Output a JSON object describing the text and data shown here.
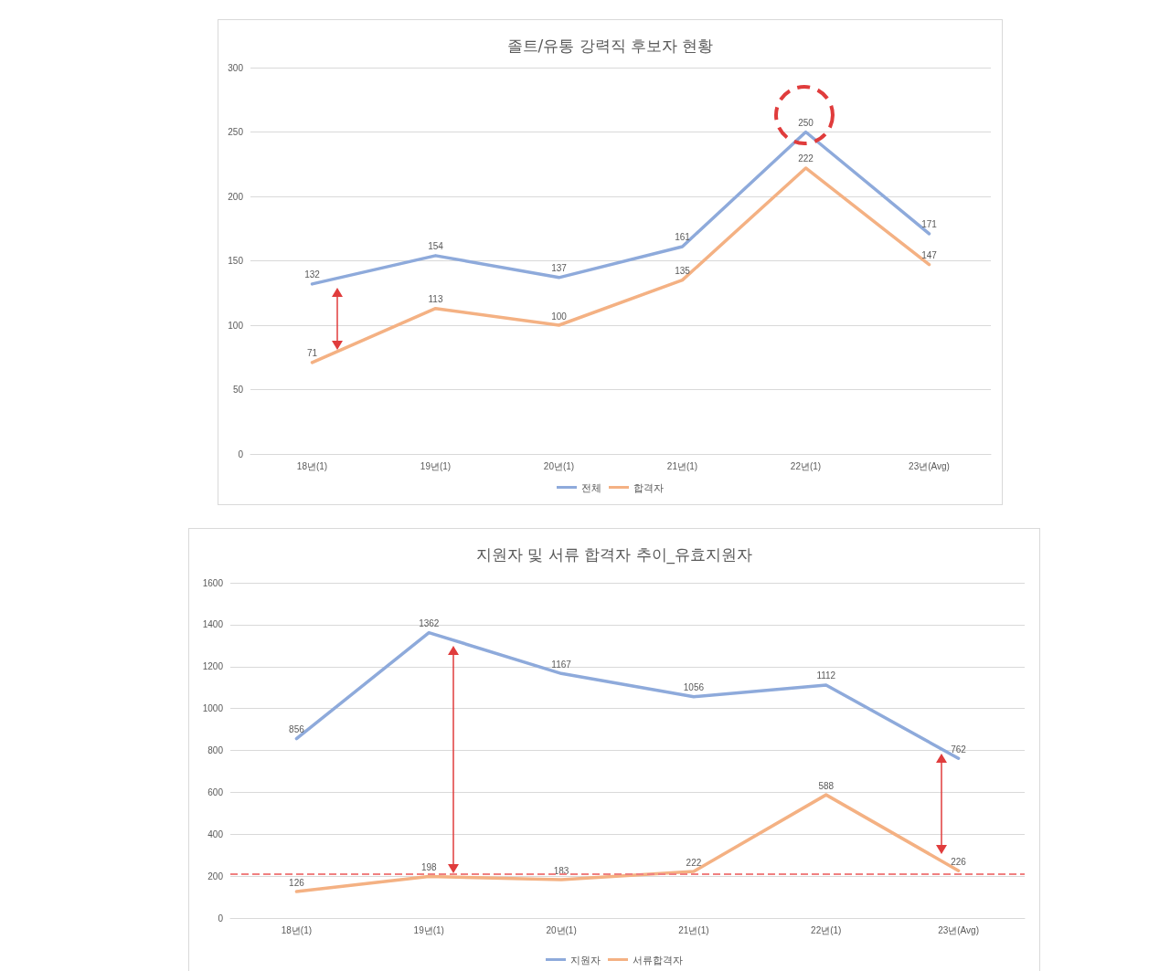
{
  "chart_data": [
    {
      "type": "line",
      "title": "졸트/유통 강력직 후보자 현황",
      "categories": [
        "18년(1)",
        "19년(1)",
        "20년(1)",
        "21년(1)",
        "22년(1)",
        "23년(Avg)"
      ],
      "series": [
        {
          "name": "전체",
          "color": "#8eaadb",
          "values": [
            132,
            154,
            137,
            161,
            250,
            171
          ]
        },
        {
          "name": "합격자",
          "color": "#f4b183",
          "values": [
            71,
            113,
            100,
            135,
            222,
            147
          ]
        }
      ],
      "ylim": [
        0,
        300
      ],
      "yticks": [
        0,
        50,
        100,
        150,
        200,
        250,
        300
      ],
      "grid": "y",
      "legend": "bottom",
      "data_labels": true,
      "marker": "none",
      "line_style": "solid"
    },
    {
      "type": "line",
      "title": "지원자 및 서류 합격자 추이_유효지원자",
      "categories": [
        "18년(1)",
        "19년(1)",
        "20년(1)",
        "21년(1)",
        "22년(1)",
        "23년(Avg)"
      ],
      "series": [
        {
          "name": "지원자",
          "color": "#8eaadb",
          "values": [
            856,
            1362,
            1167,
            1056,
            1112,
            762
          ]
        },
        {
          "name": "서류합격자",
          "color": "#f4b183",
          "values": [
            126,
            198,
            183,
            222,
            588,
            226
          ]
        }
      ],
      "ylim": [
        0,
        1600
      ],
      "yticks": [
        0,
        200,
        400,
        600,
        800,
        1000,
        1200,
        1400,
        1600
      ],
      "grid": "y",
      "legend": "bottom",
      "data_labels": true,
      "marker": "none",
      "line_style": "solid",
      "ref_lines": [
        {
          "axis": "y",
          "value": 210,
          "color": "#f08080",
          "line_style": "dashed"
        }
      ]
    }
  ]
}
